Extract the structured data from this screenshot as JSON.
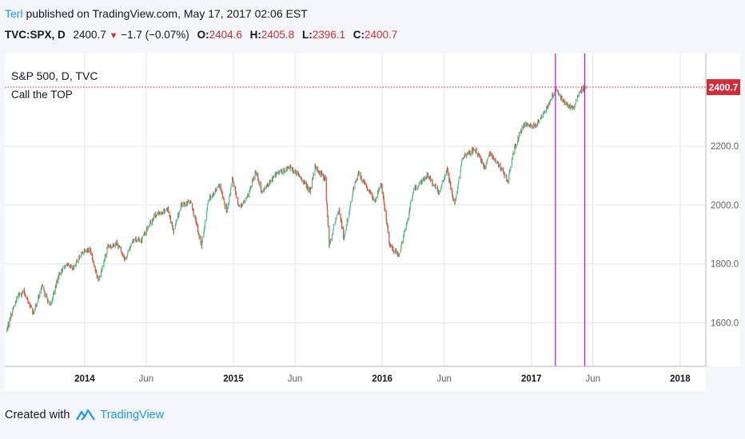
{
  "header": {
    "author": "Terl",
    "published_text": " published on TradingView.com, May 17, 2017 02:06 EST"
  },
  "quote": {
    "symbol": "TVC:SPX, D",
    "last": "2400.7",
    "change": "−1.7 (−0.07%)",
    "open_label": "O:",
    "open": "2404.6",
    "high_label": "H:",
    "high": "2405.8",
    "low_label": "L:",
    "low": "2396.1",
    "close_label": "C:",
    "close": "2400.7"
  },
  "legend": {
    "series_title": "S&P 500, D, TVC",
    "annotation": "Call the TOP"
  },
  "footer": {
    "created_with": "Created with",
    "brand": "TradingView",
    "logo_icon": "tradingview-logo-icon"
  },
  "colors": {
    "up": "#53b987",
    "down": "#d04d3c",
    "vline": "#d500f9",
    "price_line": "#cc2f3c",
    "price_tag": "#cc2f3c",
    "grid": "#e3e6ea",
    "axis_text": "#5d606b",
    "brand": "#2196f3"
  },
  "chart_data": {
    "type": "candlestick",
    "title": "S&P 500, D, TVC",
    "annotation": "Call the TOP",
    "x_ticks": [
      {
        "label": "2014",
        "date": "2014-01-01",
        "bold": true
      },
      {
        "label": "Jun",
        "date": "2014-06-01"
      },
      {
        "label": "2015",
        "date": "2015-01-01",
        "bold": true
      },
      {
        "label": "Jun",
        "date": "2015-06-01"
      },
      {
        "label": "2016",
        "date": "2016-01-01",
        "bold": true
      },
      {
        "label": "Jun",
        "date": "2016-06-01"
      },
      {
        "label": "2017",
        "date": "2017-01-01",
        "bold": true
      },
      {
        "label": "Jun",
        "date": "2017-06-01"
      },
      {
        "label": "2018",
        "date": "2018-01-01",
        "bold": true
      }
    ],
    "y_ticks": [
      1600,
      1800,
      2000,
      2200
    ],
    "y_tick_labels": [
      "1600.0",
      "1800.0",
      "2000.0",
      "2200.0"
    ],
    "xlim": [
      "2013-06-19",
      "2018-03-05"
    ],
    "ylim": [
      1452,
      2515
    ],
    "last_price": 2400.7,
    "last_price_label": "2400.7",
    "vertical_lines": [
      "2017-03-01",
      "2017-05-12"
    ],
    "series_close": [
      [
        "2013-06-24",
        1575
      ],
      [
        "2013-07-05",
        1632
      ],
      [
        "2013-07-22",
        1695
      ],
      [
        "2013-08-05",
        1705
      ],
      [
        "2013-08-28",
        1632
      ],
      [
        "2013-09-18",
        1722
      ],
      [
        "2013-10-08",
        1655
      ],
      [
        "2013-10-30",
        1765
      ],
      [
        "2013-11-15",
        1795
      ],
      [
        "2013-12-03",
        1785
      ],
      [
        "2013-12-31",
        1848
      ],
      [
        "2014-01-15",
        1848
      ],
      [
        "2014-02-03",
        1742
      ],
      [
        "2014-02-27",
        1855
      ],
      [
        "2014-03-20",
        1872
      ],
      [
        "2014-04-11",
        1816
      ],
      [
        "2014-04-30",
        1885
      ],
      [
        "2014-05-20",
        1880
      ],
      [
        "2014-06-20",
        1962
      ],
      [
        "2014-07-24",
        1988
      ],
      [
        "2014-08-07",
        1910
      ],
      [
        "2014-08-26",
        2000
      ],
      [
        "2014-09-18",
        2011
      ],
      [
        "2014-10-15",
        1862
      ],
      [
        "2014-10-31",
        2018
      ],
      [
        "2014-11-28",
        2067
      ],
      [
        "2014-12-16",
        1972
      ],
      [
        "2014-12-29",
        2090
      ],
      [
        "2015-01-15",
        1992
      ],
      [
        "2015-02-02",
        2018
      ],
      [
        "2015-02-25",
        2115
      ],
      [
        "2015-03-12",
        2042
      ],
      [
        "2015-04-15",
        2105
      ],
      [
        "2015-05-20",
        2128
      ],
      [
        "2015-06-15",
        2094
      ],
      [
        "2015-07-08",
        2046
      ],
      [
        "2015-07-20",
        2128
      ],
      [
        "2015-08-14",
        2090
      ],
      [
        "2015-08-24",
        1867
      ],
      [
        "2015-09-17",
        1990
      ],
      [
        "2015-09-29",
        1884
      ],
      [
        "2015-10-22",
        2052
      ],
      [
        "2015-11-03",
        2109
      ],
      [
        "2015-12-14",
        2012
      ],
      [
        "2015-12-29",
        2078
      ],
      [
        "2016-01-20",
        1860
      ],
      [
        "2016-02-11",
        1829
      ],
      [
        "2016-02-29",
        1932
      ],
      [
        "2016-03-18",
        2050
      ],
      [
        "2016-04-20",
        2102
      ],
      [
        "2016-05-19",
        2040
      ],
      [
        "2016-06-08",
        2119
      ],
      [
        "2016-06-27",
        2000
      ],
      [
        "2016-07-15",
        2161
      ],
      [
        "2016-08-15",
        2190
      ],
      [
        "2016-09-09",
        2127
      ],
      [
        "2016-09-22",
        2177
      ],
      [
        "2016-10-14",
        2133
      ],
      [
        "2016-11-04",
        2085
      ],
      [
        "2016-11-21",
        2198
      ],
      [
        "2016-12-13",
        2272
      ],
      [
        "2017-01-10",
        2269
      ],
      [
        "2017-01-26",
        2298
      ],
      [
        "2017-02-15",
        2350
      ],
      [
        "2017-03-01",
        2395
      ],
      [
        "2017-03-22",
        2348
      ],
      [
        "2017-04-13",
        2329
      ],
      [
        "2017-05-01",
        2388
      ],
      [
        "2017-05-16",
        2401
      ]
    ]
  }
}
